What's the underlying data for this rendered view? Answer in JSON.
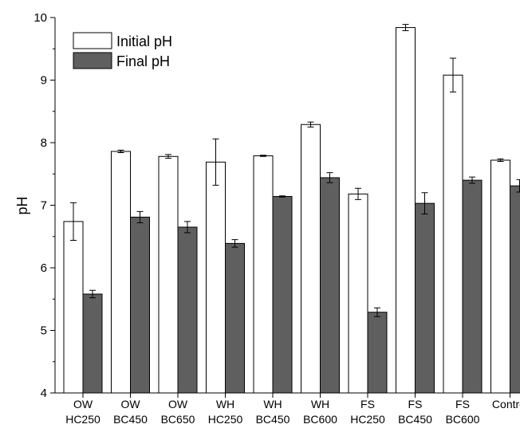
{
  "chart_data": {
    "type": "bar",
    "ylabel": "pH",
    "xlabel": "",
    "ylim": [
      4,
      10
    ],
    "yticks": [
      4,
      5,
      6,
      7,
      8,
      9,
      10
    ],
    "grid": false,
    "legend_position": "top-left",
    "categories": [
      [
        "OW",
        "HC250"
      ],
      [
        "OW",
        "BC450"
      ],
      [
        "OW",
        "BC650"
      ],
      [
        "WH",
        "HC250"
      ],
      [
        "WH",
        "BC450"
      ],
      [
        "WH",
        "BC600"
      ],
      [
        "FS",
        "HC250"
      ],
      [
        "FS",
        "BC450"
      ],
      [
        "FS",
        "BC600"
      ],
      [
        "Control",
        ""
      ]
    ],
    "series": [
      {
        "name": "Initial pH",
        "color": "#ffffff",
        "values": [
          6.74,
          7.86,
          7.78,
          7.69,
          7.79,
          8.29,
          7.18,
          9.84,
          9.08,
          7.72
        ],
        "errors": [
          0.3,
          0.02,
          0.03,
          0.37,
          0.01,
          0.04,
          0.09,
          0.05,
          0.27,
          0.02
        ]
      },
      {
        "name": "Final pH",
        "color": "#5f5f5f",
        "values": [
          5.58,
          6.81,
          6.65,
          6.39,
          7.14,
          7.44,
          5.29,
          7.03,
          7.4,
          7.31
        ],
        "errors": [
          0.06,
          0.09,
          0.09,
          0.06,
          0.01,
          0.08,
          0.07,
          0.17,
          0.05,
          0.1
        ]
      }
    ]
  }
}
